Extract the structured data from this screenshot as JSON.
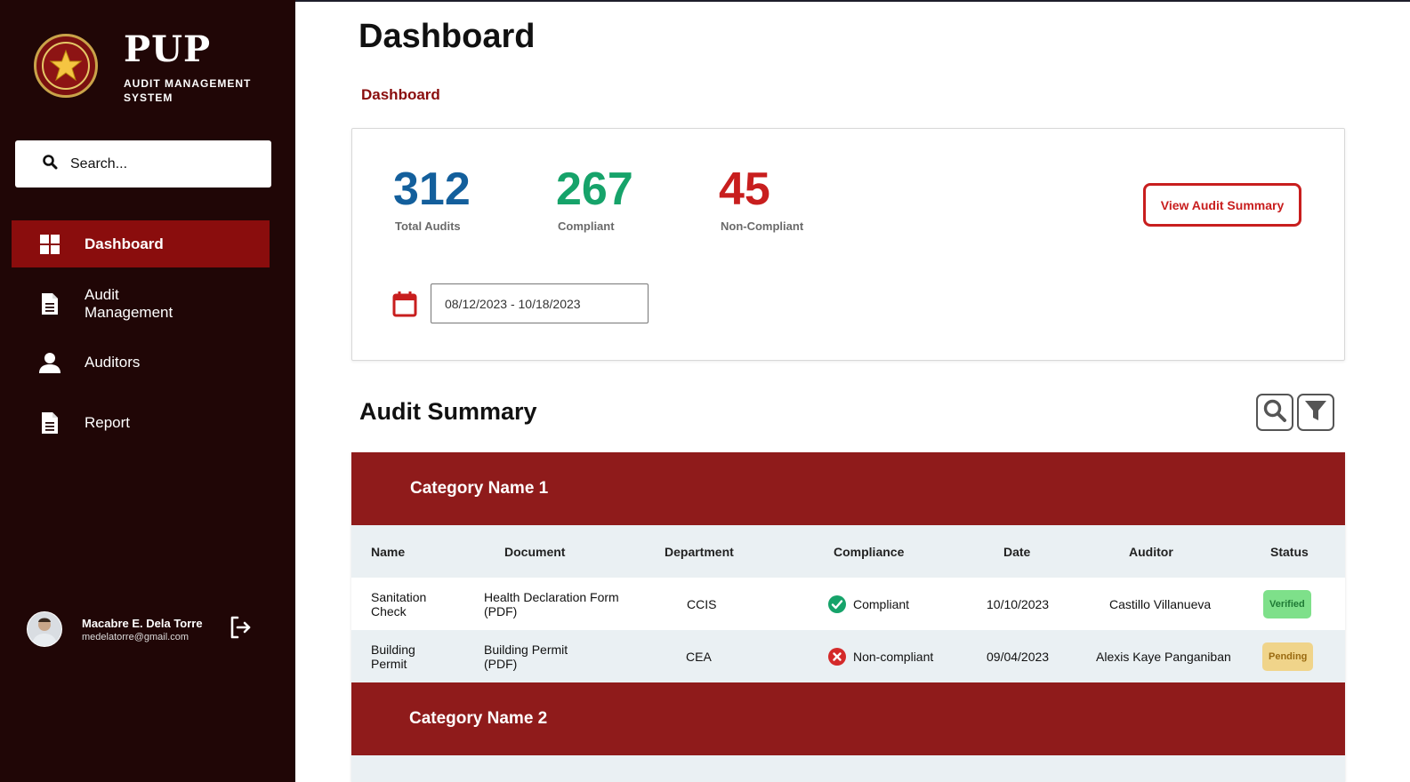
{
  "brand": {
    "title": "PUP",
    "subtitle": "AUDIT MANAGEMENT SYSTEM"
  },
  "search": {
    "placeholder": "Search..."
  },
  "nav": [
    {
      "label": "Dashboard",
      "icon": "grid-icon",
      "active": true
    },
    {
      "label": "Audit Management",
      "icon": "document-icon",
      "active": false
    },
    {
      "label": "Auditors",
      "icon": "user-icon",
      "active": false
    },
    {
      "label": "Report",
      "icon": "document-icon",
      "active": false
    }
  ],
  "user": {
    "name": "Macabre E. Dela Torre",
    "email": "medelatorre@gmail.com"
  },
  "page": {
    "title": "Dashboard",
    "breadcrumb": "Dashboard"
  },
  "stats": {
    "total": {
      "value": "312",
      "label": "Total Audits",
      "color": "#135f9c"
    },
    "compliant": {
      "value": "267",
      "label": "Compliant",
      "color": "#16a36a"
    },
    "noncompliant": {
      "value": "45",
      "label": "Non-Compliant",
      "color": "#c81e1e"
    },
    "button": "View Audit Summary",
    "date_range": "08/12/2023 - 10/18/2023"
  },
  "summary": {
    "title": "Audit Summary",
    "columns": [
      "Name",
      "Document",
      "Department",
      "Compliance",
      "Date",
      "Auditor",
      "Status"
    ],
    "categories": [
      {
        "name": "Category Name 1",
        "rows": [
          {
            "name": "Sanitation Check",
            "document": "Health Declaration Form (PDF)",
            "department": "CCIS",
            "compliance": "Compliant",
            "date": "10/10/2023",
            "auditor": "Castillo Villanueva",
            "status": "Verified"
          },
          {
            "name": "Building Permit",
            "document": "Building Permit (PDF)",
            "department": "CEA",
            "compliance": "Non-compliant",
            "date": "09/04/2023",
            "auditor": "Alexis Kaye Panganiban",
            "status": "Pending"
          }
        ]
      },
      {
        "name": "Category Name 2",
        "rows": []
      }
    ]
  },
  "colors": {
    "sidebar": "#200606",
    "accent": "#8a0d0d",
    "category": "#8f1b1b",
    "verified": "#7ee08a",
    "pending": "#f0d48a"
  }
}
